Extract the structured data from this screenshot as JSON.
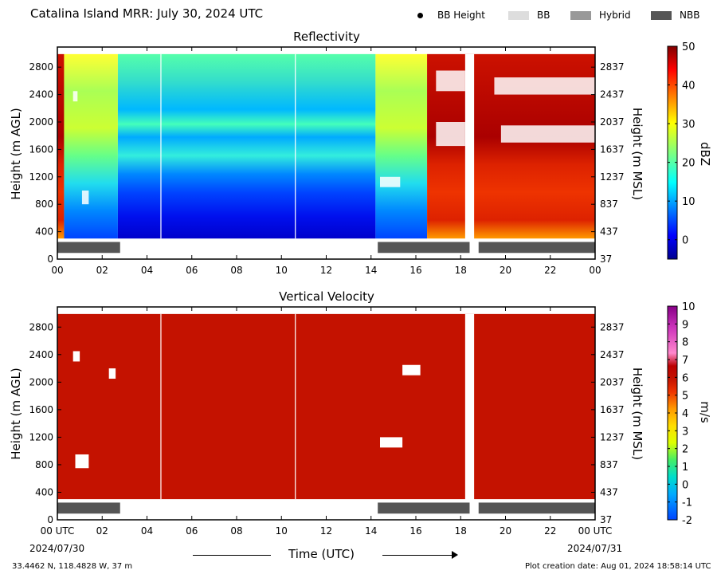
{
  "title": "Catalina Island MRR:  July 30, 2024 UTC",
  "legend": [
    {
      "label": "BB Height",
      "kind": "dot",
      "color": "#000000"
    },
    {
      "label": "BB",
      "kind": "swatch",
      "color": "#dddddd"
    },
    {
      "label": "Hybrid",
      "kind": "swatch",
      "color": "#999999"
    },
    {
      "label": "NBB",
      "kind": "swatch",
      "color": "#555555"
    }
  ],
  "panels": {
    "reflectivity": {
      "title": "Reflectivity",
      "ylabel_left": "Height (m AGL)",
      "ylabel_right": "Height (m MSL)",
      "colorbar_label": "dBZ",
      "colorbar_ticks": [
        "50",
        "40",
        "30",
        "20",
        "10",
        "0"
      ],
      "colorbar_range": [
        -5,
        50
      ]
    },
    "velocity": {
      "title": "Vertical Velocity",
      "ylabel_left": "Height (m AGL)",
      "ylabel_right": "Height (m MSL)",
      "colorbar_label": "m/s",
      "colorbar_ticks": [
        "10",
        "9",
        "8",
        "7",
        "6",
        "5",
        "4",
        "3",
        "2",
        "1",
        "0",
        "-1",
        "-2"
      ],
      "colorbar_range": [
        -2,
        10
      ]
    }
  },
  "axes": {
    "x_ticks_top": [
      "00",
      "02",
      "04",
      "06",
      "08",
      "10",
      "12",
      "14",
      "16",
      "18",
      "20",
      "22",
      "00"
    ],
    "x_ticks_bottom": [
      "00 UTC",
      "02",
      "04",
      "06",
      "08",
      "10",
      "12",
      "14",
      "16",
      "18",
      "20",
      "22",
      "00 UTC"
    ],
    "y_ticks_left": [
      "2800",
      "2400",
      "2000",
      "1600",
      "1200",
      "800",
      "400",
      "0"
    ],
    "y_ticks_right": [
      "2837",
      "2437",
      "2037",
      "1637",
      "1237",
      "837",
      "437",
      "37"
    ],
    "date_start": "2024/07/30",
    "date_end": "2024/07/31",
    "xlabel": "Time (UTC)"
  },
  "footer": {
    "location": "33.4462 N, 118.4828 W, 37 m",
    "creation": "Plot creation date: Aug 01, 2024 18:58:14 UTC"
  },
  "chart_data": [
    {
      "type": "heatmap",
      "title": "Reflectivity",
      "xlabel": "",
      "ylabel": "Height (m AGL)",
      "xlim_hours": [
        0,
        24
      ],
      "ylim_m": [
        0,
        3000
      ],
      "colorbar": {
        "label": "dBZ",
        "range": [
          -5,
          50
        ]
      },
      "time_segments_hours": [
        {
          "start": 0.0,
          "end": 0.3,
          "description_dbz": 40
        },
        {
          "start": 0.3,
          "end": 2.7,
          "description_dbz": 22
        },
        {
          "start": 2.7,
          "end": 14.2,
          "description_dbz": 10
        },
        {
          "start": 14.2,
          "end": 16.5,
          "description_dbz": 22
        },
        {
          "start": 16.5,
          "end": 24.0,
          "description_dbz": 44
        }
      ],
      "data_gap_hours": [
        18.2,
        18.6
      ],
      "nbb_bars_hours": [
        [
          0.0,
          2.8
        ],
        [
          14.3,
          18.4
        ],
        [
          18.8,
          24.0
        ]
      ]
    },
    {
      "type": "heatmap",
      "title": "Vertical Velocity",
      "xlabel": "Time (UTC)",
      "ylabel": "Height (m AGL)",
      "xlim_hours": [
        0,
        24
      ],
      "ylim_m": [
        0,
        3000
      ],
      "colorbar": {
        "label": "m/s",
        "range": [
          -2,
          10
        ]
      },
      "dominant_value_ms": 6,
      "data_gap_hours": [
        18.2,
        18.6
      ],
      "nbb_bars_hours": [
        [
          0.0,
          2.8
        ],
        [
          14.3,
          18.4
        ],
        [
          18.8,
          24.0
        ]
      ]
    }
  ]
}
